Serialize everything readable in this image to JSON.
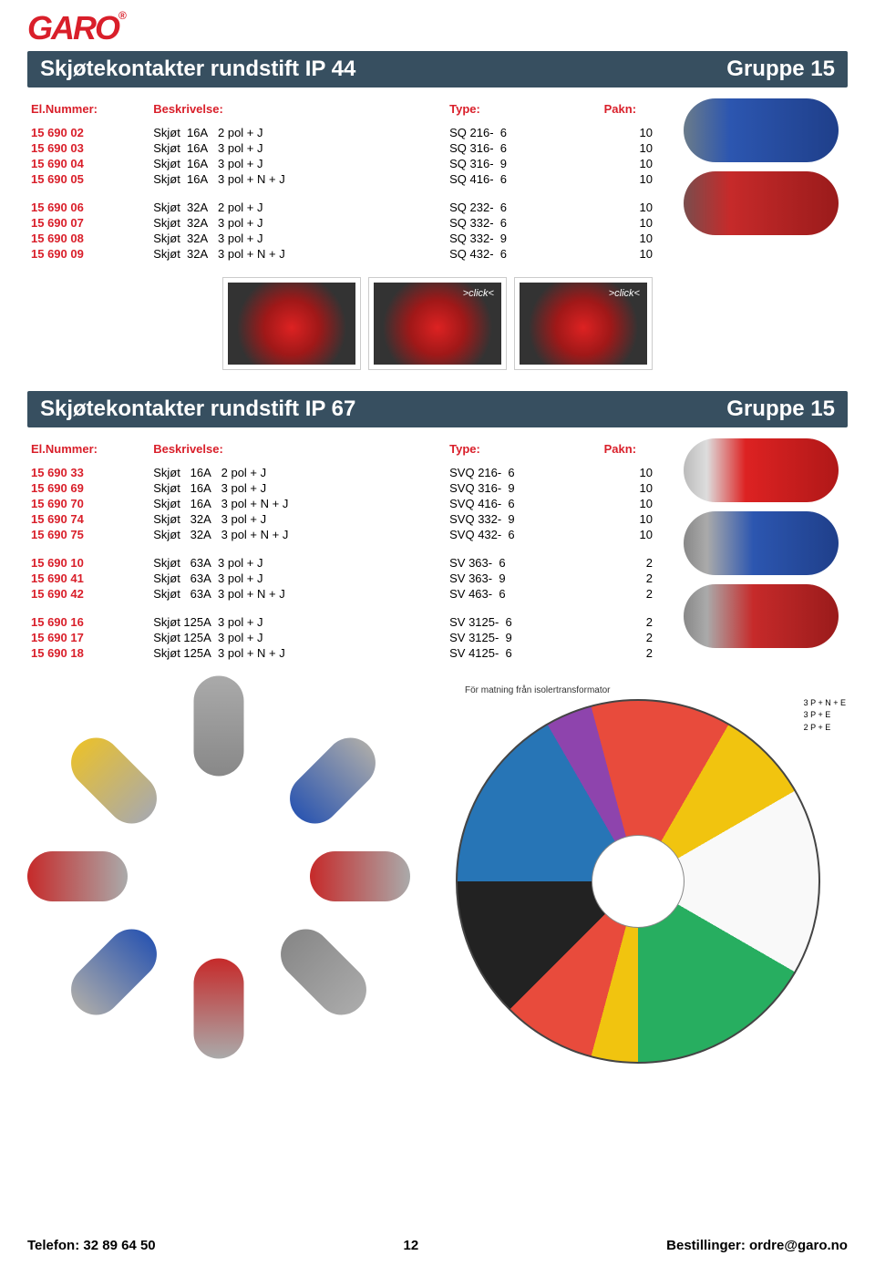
{
  "logo": "GARO",
  "section1": {
    "title": "Skjøtekontakter rundstift IP 44",
    "group": "Gruppe 15"
  },
  "section2": {
    "title": "Skjøtekontakter rundstift IP 67",
    "group": "Gruppe 15"
  },
  "headers": {
    "elnum": "El.Nummer:",
    "desc": "Beskrivelse:",
    "type": "Type:",
    "pakn": "Pakn:"
  },
  "click_label": ">click<",
  "table1a": [
    {
      "el": "15 690 02",
      "d": "Skjøt  16A   2 pol + J",
      "t": "SQ 216-  6",
      "p": "10"
    },
    {
      "el": "15 690 03",
      "d": "Skjøt  16A   3 pol + J",
      "t": "SQ 316-  6",
      "p": "10"
    },
    {
      "el": "15 690 04",
      "d": "Skjøt  16A   3 pol + J",
      "t": "SQ 316-  9",
      "p": "10"
    },
    {
      "el": "15 690 05",
      "d": "Skjøt  16A   3 pol + N + J",
      "t": "SQ 416-  6",
      "p": "10"
    }
  ],
  "table1b": [
    {
      "el": "15 690 06",
      "d": "Skjøt  32A   2 pol + J",
      "t": "SQ 232-  6",
      "p": "10"
    },
    {
      "el": "15 690 07",
      "d": "Skjøt  32A   3 pol + J",
      "t": "SQ 332-  6",
      "p": "10"
    },
    {
      "el": "15 690 08",
      "d": "Skjøt  32A   3 pol + J",
      "t": "SQ 332-  9",
      "p": "10"
    },
    {
      "el": "15 690 09",
      "d": "Skjøt  32A   3 pol + N + J",
      "t": "SQ 432-  6",
      "p": "10"
    }
  ],
  "table2a": [
    {
      "el": "15 690 33",
      "d": "Skjøt   16A   2 pol + J",
      "t": "SVQ 216-  6",
      "p": "10"
    },
    {
      "el": "15 690 69",
      "d": "Skjøt   16A   3 pol + J",
      "t": "SVQ 316-  9",
      "p": "10"
    },
    {
      "el": "15 690 70",
      "d": "Skjøt   16A   3 pol + N + J",
      "t": "SVQ 416-  6",
      "p": "10"
    },
    {
      "el": "15 690 74",
      "d": "Skjøt   32A   3 pol + J",
      "t": "SVQ 332-  9",
      "p": "10"
    },
    {
      "el": "15 690 75",
      "d": "Skjøt   32A   3 pol + N + J",
      "t": "SVQ 432-  6",
      "p": "10"
    }
  ],
  "table2b": [
    {
      "el": "15 690 10",
      "d": "Skjøt   63A  3 pol + J",
      "t": "SV 363-  6",
      "p": "2"
    },
    {
      "el": "15 690 41",
      "d": "Skjøt   63A  3 pol + J",
      "t": "SV 363-  9",
      "p": "2"
    },
    {
      "el": "15 690 42",
      "d": "Skjøt   63A  3 pol + N + J",
      "t": "SV 463-  6",
      "p": "2"
    }
  ],
  "table2c": [
    {
      "el": "15 690 16",
      "d": "Skjøt 125A  3 pol + J",
      "t": "SV 3125-  6",
      "p": "2"
    },
    {
      "el": "15 690 17",
      "d": "Skjøt 125A  3 pol + J",
      "t": "SV 3125-  9",
      "p": "2"
    },
    {
      "el": "15 690 18",
      "d": "Skjøt 125A  3 pol + N + J",
      "t": "SV 4125-  6",
      "p": "2"
    }
  ],
  "wheel_caption": "För matning från isolertransformator",
  "wheel_side": "3 P + N + E\n3 P + E\n2 P + E",
  "footer": {
    "tel": "Telefon: 32 89 64 50",
    "page": "12",
    "order": "Bestillinger: ordre@garo.no"
  }
}
